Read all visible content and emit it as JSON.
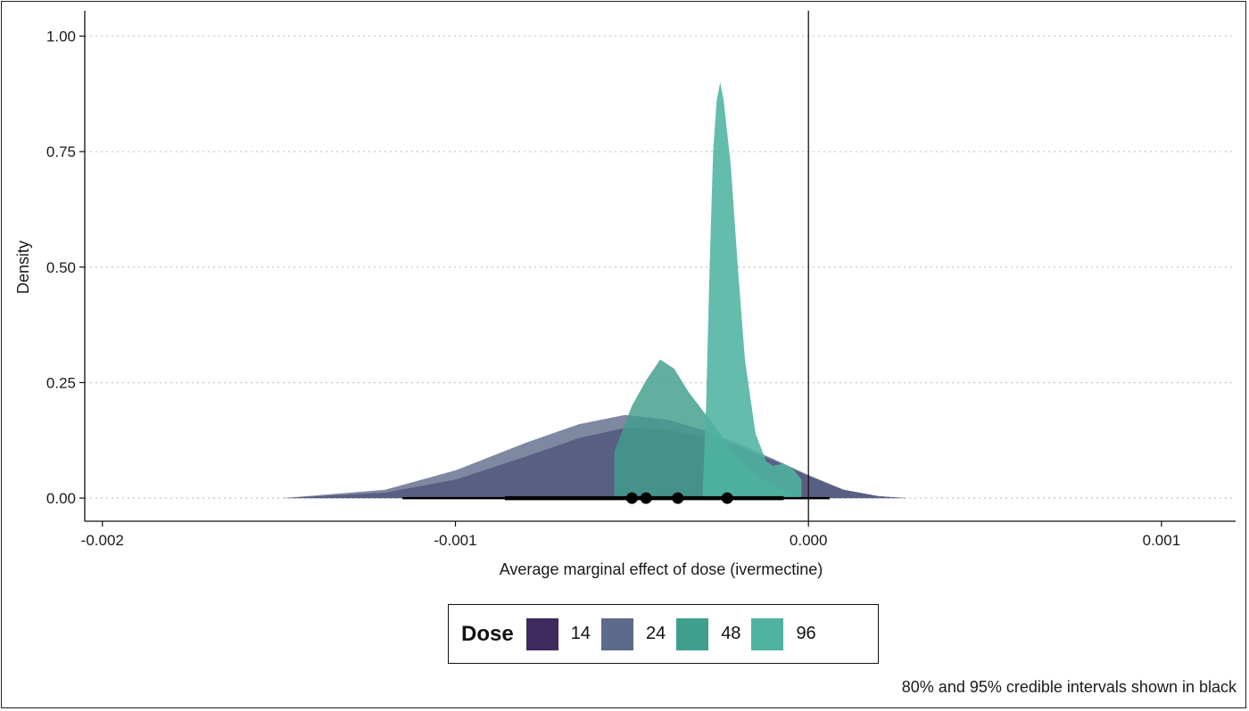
{
  "chart_data": {
    "type": "area",
    "xlabel": "Average marginal effect of dose (ivermectine)",
    "ylabel": "Density",
    "xlim": [
      -0.00205,
      0.00121
    ],
    "ylim": [
      -0.05,
      1.055
    ],
    "x_ticks": [
      {
        "value": -0.002,
        "label": "-0.002"
      },
      {
        "value": -0.001,
        "label": "-0.001"
      },
      {
        "value": 0.0,
        "label": "0.000"
      },
      {
        "value": 0.001,
        "label": "0.001"
      }
    ],
    "y_ticks": [
      {
        "value": 0.0,
        "label": "0.00"
      },
      {
        "value": 0.25,
        "label": "0.25"
      },
      {
        "value": 0.5,
        "label": "0.50"
      },
      {
        "value": 0.75,
        "label": "0.75"
      },
      {
        "value": 1.0,
        "label": "1.00"
      }
    ],
    "grid": "horizontal dotted",
    "vline_x": 0.0,
    "legend": {
      "title": "Dose",
      "position": "bottom"
    },
    "series": [
      {
        "name": "14",
        "color": "#3f2a5e",
        "x": [
          -0.00149,
          -0.0012,
          -0.001,
          -0.0008,
          -0.00065,
          -0.00052,
          -0.0004,
          -0.0003,
          -0.0002,
          -0.0001,
          0.0,
          0.0001,
          0.0002,
          0.00028
        ],
        "y": [
          0.0,
          0.012,
          0.04,
          0.09,
          0.13,
          0.152,
          0.148,
          0.133,
          0.112,
          0.082,
          0.048,
          0.018,
          0.004,
          0.0
        ]
      },
      {
        "name": "24",
        "color": "#5e6a8a",
        "x": [
          -0.00149,
          -0.0012,
          -0.001,
          -0.0008,
          -0.00065,
          -0.00052,
          -0.0004,
          -0.0003,
          -0.0002,
          -0.0001,
          0.0,
          0.0001,
          0.0002,
          0.00028
        ],
        "y": [
          0.0,
          0.018,
          0.06,
          0.12,
          0.16,
          0.18,
          0.17,
          0.148,
          0.118,
          0.085,
          0.05,
          0.018,
          0.004,
          0.0
        ]
      },
      {
        "name": "48",
        "color": "#3f9e8e",
        "x": [
          -0.00055,
          -0.0005,
          -0.00046,
          -0.00042,
          -0.00038,
          -0.00034,
          -0.0003,
          -0.00026,
          -0.00022,
          -0.00018,
          -0.00012,
          -6e-05,
          -2e-05
        ],
        "y": [
          0.1,
          0.2,
          0.255,
          0.3,
          0.28,
          0.23,
          0.19,
          0.15,
          0.105,
          0.07,
          0.035,
          0.012,
          0.0
        ]
      },
      {
        "name": "96",
        "color": "#4fb3a0",
        "x": [
          -0.0003,
          -0.00029,
          -0.00028,
          -0.00027,
          -0.00026,
          -0.00025,
          -0.00024,
          -0.00022,
          -0.0002,
          -0.00018,
          -0.00015,
          -0.00012,
          -0.0001,
          -7e-05,
          -4e-05,
          -2e-05
        ],
        "y": [
          0.0,
          0.2,
          0.5,
          0.75,
          0.86,
          0.9,
          0.86,
          0.72,
          0.5,
          0.3,
          0.14,
          0.08,
          0.07,
          0.075,
          0.06,
          0.04
        ]
      }
    ],
    "points": [
      {
        "x": -0.0005,
        "y": 0.0
      },
      {
        "x": -0.00046,
        "y": 0.0
      },
      {
        "x": -0.00037,
        "y": 0.0
      },
      {
        "x": -0.00023,
        "y": 0.0
      }
    ],
    "intervals": [
      {
        "level": "95%",
        "low": -0.00115,
        "high": 6e-05
      },
      {
        "level": "80%",
        "low": -0.00086,
        "high": -7e-05
      }
    ],
    "caption": "80% and 95% credible intervals shown in black"
  }
}
